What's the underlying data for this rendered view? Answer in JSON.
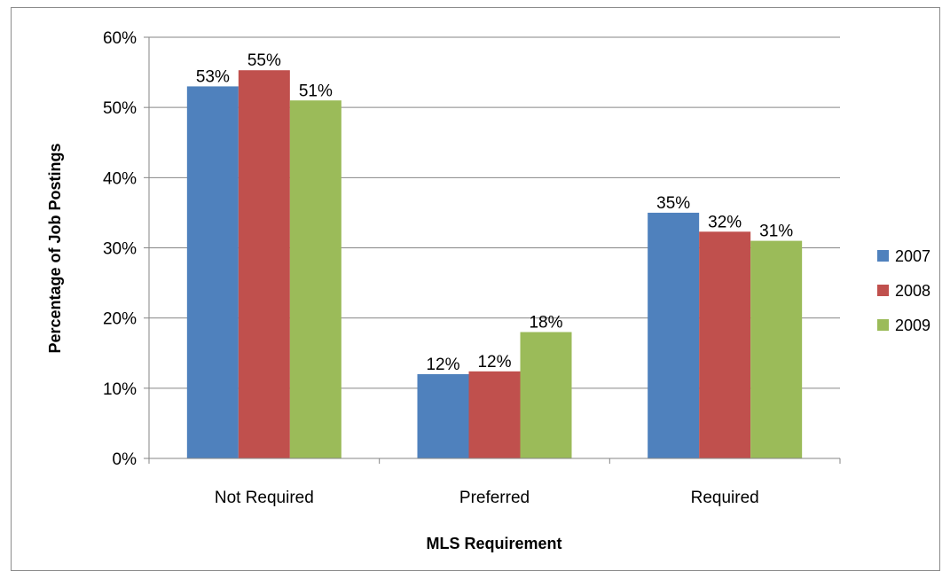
{
  "chart_data": {
    "type": "bar",
    "categories": [
      "Not Required",
      "Preferred",
      "Required"
    ],
    "series": [
      {
        "name": "2007",
        "color": "#4f81bd",
        "values": [
          53,
          12,
          35
        ],
        "labels": [
          "53%",
          "12%",
          "35%"
        ]
      },
      {
        "name": "2008",
        "color": "#c0504d",
        "values": [
          55.3,
          12.4,
          32.3
        ],
        "labels": [
          "55%",
          "12%",
          "32%"
        ]
      },
      {
        "name": "2009",
        "color": "#9bbb59",
        "values": [
          51,
          18,
          31
        ],
        "labels": [
          "51%",
          "18%",
          "31%"
        ]
      }
    ],
    "xlabel": "MLS Requirement",
    "ylabel": "Percentage of Job Postings",
    "ylim": [
      0,
      60
    ],
    "yticks": [
      0,
      10,
      20,
      30,
      40,
      50,
      60
    ],
    "ytick_labels": [
      "0%",
      "10%",
      "20%",
      "30%",
      "40%",
      "50%",
      "60%"
    ],
    "grid": true,
    "legend_position": "right"
  }
}
